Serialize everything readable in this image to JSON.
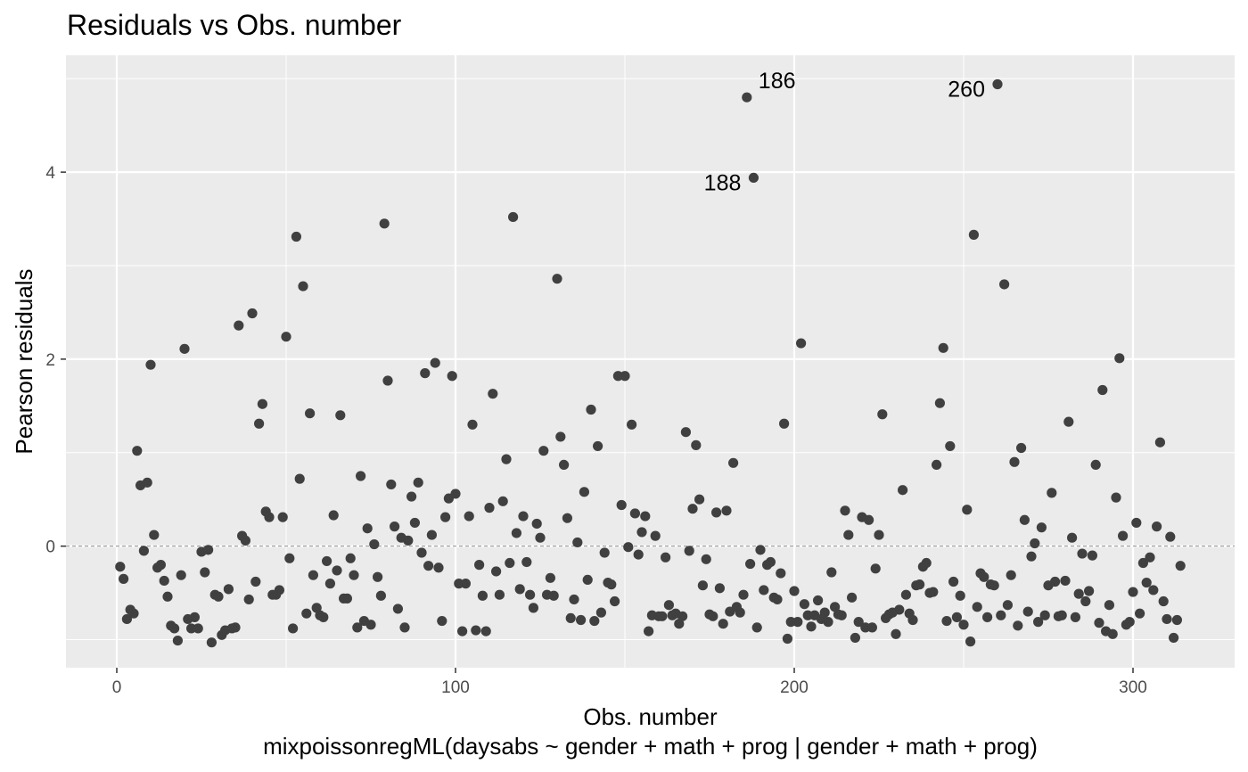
{
  "chart_data": {
    "type": "scatter",
    "title": "Residuals vs Obs. number",
    "xlabel": "Obs. number",
    "caption": "mixpoissonregML(daysabs ~ gender + math + prog | gender + math + prog)",
    "ylabel": "Pearson residuals",
    "xlim": [
      -15,
      330
    ],
    "ylim": [
      -1.3,
      5.25
    ],
    "x_ticks": [
      0,
      100,
      200,
      300
    ],
    "y_ticks": [
      0,
      2,
      4
    ],
    "x_tick_labels": [
      "0",
      "100",
      "200",
      "300"
    ],
    "y_tick_labels": [
      "0",
      "2",
      "4"
    ],
    "reference_line": 0,
    "grid": true,
    "colors": {
      "panel": "#ebebeb",
      "grid": "#ffffff",
      "point": "#404040",
      "refline": "#8c8c8c"
    },
    "labeled_points": [
      {
        "label": "186",
        "x": 186,
        "y": 4.8
      },
      {
        "label": "260",
        "x": 260,
        "y": 4.94
      },
      {
        "label": "188",
        "x": 188,
        "y": 3.94
      }
    ],
    "points": [
      [
        1,
        -0.22
      ],
      [
        2,
        -0.35
      ],
      [
        3,
        -0.78
      ],
      [
        4,
        -0.68
      ],
      [
        5,
        -0.72
      ],
      [
        6,
        1.02
      ],
      [
        7,
        0.65
      ],
      [
        8,
        -0.05
      ],
      [
        9,
        0.68
      ],
      [
        10,
        1.94
      ],
      [
        11,
        0.12
      ],
      [
        12,
        -0.23
      ],
      [
        13,
        -0.2
      ],
      [
        14,
        -0.37
      ],
      [
        15,
        -0.54
      ],
      [
        16,
        -0.85
      ],
      [
        17,
        -0.88
      ],
      [
        18,
        -1.01
      ],
      [
        19,
        -0.31
      ],
      [
        20,
        2.11
      ],
      [
        21,
        -0.78
      ],
      [
        22,
        -0.88
      ],
      [
        23,
        -0.76
      ],
      [
        24,
        -0.88
      ],
      [
        25,
        -0.06
      ],
      [
        26,
        -0.28
      ],
      [
        27,
        -0.04
      ],
      [
        28,
        -1.03
      ],
      [
        29,
        -0.52
      ],
      [
        30,
        -0.54
      ],
      [
        31,
        -0.95
      ],
      [
        32,
        -0.9
      ],
      [
        33,
        -0.46
      ],
      [
        34,
        -0.88
      ],
      [
        35,
        -0.87
      ],
      [
        36,
        2.36
      ],
      [
        37,
        0.11
      ],
      [
        38,
        0.06
      ],
      [
        39,
        -0.57
      ],
      [
        40,
        2.49
      ],
      [
        41,
        -0.38
      ],
      [
        42,
        1.31
      ],
      [
        43,
        1.52
      ],
      [
        44,
        0.37
      ],
      [
        45,
        0.31
      ],
      [
        46,
        -0.52
      ],
      [
        47,
        -0.52
      ],
      [
        48,
        -0.47
      ],
      [
        49,
        0.31
      ],
      [
        50,
        2.24
      ],
      [
        51,
        -0.13
      ],
      [
        52,
        -0.88
      ],
      [
        53,
        3.31
      ],
      [
        54,
        0.72
      ],
      [
        55,
        2.78
      ],
      [
        56,
        -0.72
      ],
      [
        57,
        1.42
      ],
      [
        58,
        -0.31
      ],
      [
        59,
        -0.66
      ],
      [
        60,
        -0.74
      ],
      [
        61,
        -0.76
      ],
      [
        62,
        -0.16
      ],
      [
        63,
        -0.4
      ],
      [
        64,
        0.33
      ],
      [
        65,
        -0.26
      ],
      [
        66,
        1.4
      ],
      [
        67,
        -0.56
      ],
      [
        68,
        -0.56
      ],
      [
        69,
        -0.13
      ],
      [
        70,
        -0.31
      ],
      [
        71,
        -0.87
      ],
      [
        72,
        0.75
      ],
      [
        73,
        -0.8
      ],
      [
        74,
        0.19
      ],
      [
        75,
        -0.84
      ],
      [
        76,
        0.02
      ],
      [
        77,
        -0.33
      ],
      [
        78,
        -0.53
      ],
      [
        79,
        3.45
      ],
      [
        80,
        1.77
      ],
      [
        81,
        0.66
      ],
      [
        82,
        0.21
      ],
      [
        83,
        -0.67
      ],
      [
        84,
        0.09
      ],
      [
        85,
        -0.87
      ],
      [
        86,
        0.06
      ],
      [
        87,
        0.53
      ],
      [
        88,
        0.25
      ],
      [
        89,
        0.68
      ],
      [
        90,
        -0.07
      ],
      [
        91,
        1.85
      ],
      [
        92,
        -0.21
      ],
      [
        93,
        0.12
      ],
      [
        94,
        1.96
      ],
      [
        95,
        -0.23
      ],
      [
        96,
        -0.8
      ],
      [
        97,
        0.31
      ],
      [
        98,
        0.51
      ],
      [
        99,
        1.82
      ],
      [
        100,
        0.56
      ],
      [
        101,
        -0.4
      ],
      [
        102,
        -0.91
      ],
      [
        103,
        -0.4
      ],
      [
        104,
        0.32
      ],
      [
        105,
        1.3
      ],
      [
        106,
        -0.9
      ],
      [
        107,
        -0.2
      ],
      [
        108,
        -0.53
      ],
      [
        109,
        -0.91
      ],
      [
        110,
        0.41
      ],
      [
        111,
        1.63
      ],
      [
        112,
        -0.27
      ],
      [
        113,
        -0.52
      ],
      [
        114,
        0.48
      ],
      [
        115,
        0.93
      ],
      [
        116,
        -0.18
      ],
      [
        117,
        3.52
      ],
      [
        118,
        0.14
      ],
      [
        119,
        -0.46
      ],
      [
        120,
        0.32
      ],
      [
        121,
        -0.17
      ],
      [
        122,
        -0.52
      ],
      [
        123,
        -0.66
      ],
      [
        124,
        0.24
      ],
      [
        125,
        0.09
      ],
      [
        126,
        1.02
      ],
      [
        127,
        -0.52
      ],
      [
        128,
        -0.34
      ],
      [
        129,
        -0.53
      ],
      [
        130,
        2.86
      ],
      [
        131,
        1.17
      ],
      [
        132,
        0.87
      ],
      [
        133,
        0.3
      ],
      [
        134,
        -0.77
      ],
      [
        135,
        -0.57
      ],
      [
        136,
        0.04
      ],
      [
        137,
        -0.79
      ],
      [
        138,
        0.58
      ],
      [
        139,
        -0.36
      ],
      [
        140,
        1.46
      ],
      [
        141,
        -0.8
      ],
      [
        142,
        1.07
      ],
      [
        143,
        -0.71
      ],
      [
        144,
        -0.07
      ],
      [
        145,
        -0.39
      ],
      [
        146,
        -0.41
      ],
      [
        147,
        -0.59
      ],
      [
        148,
        1.82
      ],
      [
        149,
        0.44
      ],
      [
        150,
        1.82
      ],
      [
        151,
        -0.01
      ],
      [
        152,
        1.3
      ],
      [
        153,
        0.35
      ],
      [
        154,
        -0.09
      ],
      [
        155,
        0.15
      ],
      [
        156,
        0.32
      ],
      [
        157,
        -0.91
      ],
      [
        158,
        -0.74
      ],
      [
        159,
        0.11
      ],
      [
        160,
        -0.75
      ],
      [
        161,
        -0.75
      ],
      [
        162,
        -0.12
      ],
      [
        163,
        -0.63
      ],
      [
        164,
        -0.74
      ],
      [
        165,
        -0.72
      ],
      [
        166,
        -0.83
      ],
      [
        167,
        -0.75
      ],
      [
        168,
        1.22
      ],
      [
        169,
        -0.05
      ],
      [
        170,
        0.4
      ],
      [
        171,
        1.08
      ],
      [
        172,
        0.5
      ],
      [
        173,
        -0.42
      ],
      [
        174,
        -0.14
      ],
      [
        175,
        -0.73
      ],
      [
        176,
        -0.75
      ],
      [
        177,
        0.36
      ],
      [
        178,
        -0.45
      ],
      [
        179,
        -0.83
      ],
      [
        180,
        0.38
      ],
      [
        181,
        -0.7
      ],
      [
        182,
        0.89
      ],
      [
        183,
        -0.65
      ],
      [
        184,
        -0.71
      ],
      [
        185,
        -0.52
      ],
      [
        186,
        4.8
      ],
      [
        187,
        -0.19
      ],
      [
        188,
        3.94
      ],
      [
        189,
        -0.87
      ],
      [
        190,
        -0.04
      ],
      [
        191,
        -0.47
      ],
      [
        192,
        -0.2
      ],
      [
        193,
        -0.17
      ],
      [
        194,
        -0.55
      ],
      [
        195,
        -0.57
      ],
      [
        196,
        -0.29
      ],
      [
        197,
        1.31
      ],
      [
        198,
        -0.99
      ],
      [
        199,
        -0.81
      ],
      [
        200,
        -0.48
      ],
      [
        201,
        -0.81
      ],
      [
        202,
        2.17
      ],
      [
        203,
        -0.62
      ],
      [
        204,
        -0.74
      ],
      [
        205,
        -0.86
      ],
      [
        206,
        -0.74
      ],
      [
        207,
        -0.58
      ],
      [
        208,
        -0.78
      ],
      [
        209,
        -0.71
      ],
      [
        210,
        -0.81
      ],
      [
        211,
        -0.28
      ],
      [
        212,
        -0.65
      ],
      [
        213,
        -0.73
      ],
      [
        214,
        -0.74
      ],
      [
        215,
        0.38
      ],
      [
        216,
        0.12
      ],
      [
        217,
        -0.55
      ],
      [
        218,
        -0.98
      ],
      [
        219,
        -0.81
      ],
      [
        220,
        0.31
      ],
      [
        221,
        -0.87
      ],
      [
        222,
        0.28
      ],
      [
        223,
        -0.87
      ],
      [
        224,
        -0.24
      ],
      [
        225,
        0.12
      ],
      [
        226,
        1.41
      ],
      [
        227,
        -0.77
      ],
      [
        228,
        -0.73
      ],
      [
        229,
        -0.71
      ],
      [
        230,
        -0.94
      ],
      [
        231,
        -0.68
      ],
      [
        232,
        0.6
      ],
      [
        233,
        -0.52
      ],
      [
        234,
        -0.72
      ],
      [
        235,
        -0.79
      ],
      [
        236,
        -0.42
      ],
      [
        237,
        -0.41
      ],
      [
        238,
        -0.22
      ],
      [
        239,
        -0.18
      ],
      [
        240,
        -0.5
      ],
      [
        241,
        -0.49
      ],
      [
        242,
        0.87
      ],
      [
        243,
        1.53
      ],
      [
        244,
        2.12
      ],
      [
        245,
        -0.8
      ],
      [
        246,
        1.07
      ],
      [
        247,
        -0.38
      ],
      [
        248,
        -0.76
      ],
      [
        249,
        -0.53
      ],
      [
        250,
        -0.84
      ],
      [
        251,
        0.39
      ],
      [
        252,
        -1.02
      ],
      [
        253,
        3.33
      ],
      [
        254,
        -0.65
      ],
      [
        255,
        -0.29
      ],
      [
        256,
        -0.33
      ],
      [
        257,
        -0.76
      ],
      [
        258,
        -0.41
      ],
      [
        259,
        -0.42
      ],
      [
        260,
        4.94
      ],
      [
        261,
        -0.74
      ],
      [
        262,
        2.8
      ],
      [
        263,
        -0.63
      ],
      [
        264,
        -0.31
      ],
      [
        265,
        0.9
      ],
      [
        266,
        -0.85
      ],
      [
        267,
        1.05
      ],
      [
        268,
        0.28
      ],
      [
        269,
        -0.7
      ],
      [
        270,
        -0.11
      ],
      [
        271,
        0.03
      ],
      [
        272,
        -0.81
      ],
      [
        273,
        0.2
      ],
      [
        274,
        -0.74
      ],
      [
        275,
        -0.42
      ],
      [
        276,
        0.57
      ],
      [
        277,
        -0.38
      ],
      [
        278,
        -0.75
      ],
      [
        279,
        -0.74
      ],
      [
        280,
        -0.37
      ],
      [
        281,
        1.33
      ],
      [
        282,
        0.09
      ],
      [
        283,
        -0.76
      ],
      [
        284,
        -0.51
      ],
      [
        285,
        -0.08
      ],
      [
        286,
        -0.59
      ],
      [
        287,
        -0.48
      ],
      [
        288,
        -0.1
      ],
      [
        289,
        0.87
      ],
      [
        290,
        -0.82
      ],
      [
        291,
        1.67
      ],
      [
        292,
        -0.91
      ],
      [
        293,
        -0.63
      ],
      [
        294,
        -0.94
      ],
      [
        295,
        0.52
      ],
      [
        296,
        2.01
      ],
      [
        297,
        0.11
      ],
      [
        298,
        -0.84
      ],
      [
        299,
        -0.81
      ],
      [
        300,
        -0.49
      ],
      [
        301,
        0.25
      ],
      [
        302,
        -0.72
      ],
      [
        303,
        -0.18
      ],
      [
        304,
        -0.39
      ],
      [
        305,
        -0.12
      ],
      [
        306,
        -0.47
      ],
      [
        307,
        0.21
      ],
      [
        308,
        1.11
      ],
      [
        309,
        -0.59
      ],
      [
        310,
        -0.78
      ],
      [
        311,
        0.1
      ],
      [
        312,
        -0.98
      ],
      [
        313,
        -0.79
      ],
      [
        314,
        -0.21
      ]
    ]
  }
}
